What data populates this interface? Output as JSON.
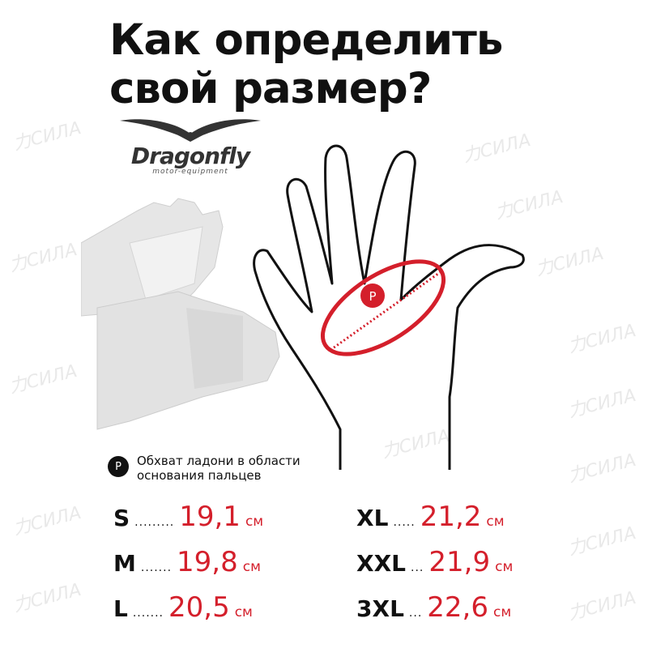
{
  "title_line1": "Как определить",
  "title_line2": "свой размер?",
  "logo": {
    "brand": "Dragonfly",
    "tagline": "motor-equipment"
  },
  "watermark": "力СИЛА",
  "marker": {
    "label": "P",
    "color": "#d41f2b"
  },
  "legend": {
    "badge": "P",
    "text": "Обхват ладони в области основания пальцев"
  },
  "sizes": [
    {
      "size": "S",
      "dots": ".........",
      "value": "19,1",
      "unit": "см"
    },
    {
      "size": "XL",
      "dots": ".....",
      "value": "21,2",
      "unit": "см"
    },
    {
      "size": "M",
      "dots": ".......",
      "value": "19,8",
      "unit": "см"
    },
    {
      "size": "XXL",
      "dots": "...",
      "value": "21,9",
      "unit": "см"
    },
    {
      "size": "L",
      "dots": ".......",
      "value": "20,5",
      "unit": "см"
    },
    {
      "size": "3XL",
      "dots": "...",
      "value": "22,6",
      "unit": "см"
    }
  ],
  "colors": {
    "accent": "#d41f2b",
    "text": "#111111"
  }
}
